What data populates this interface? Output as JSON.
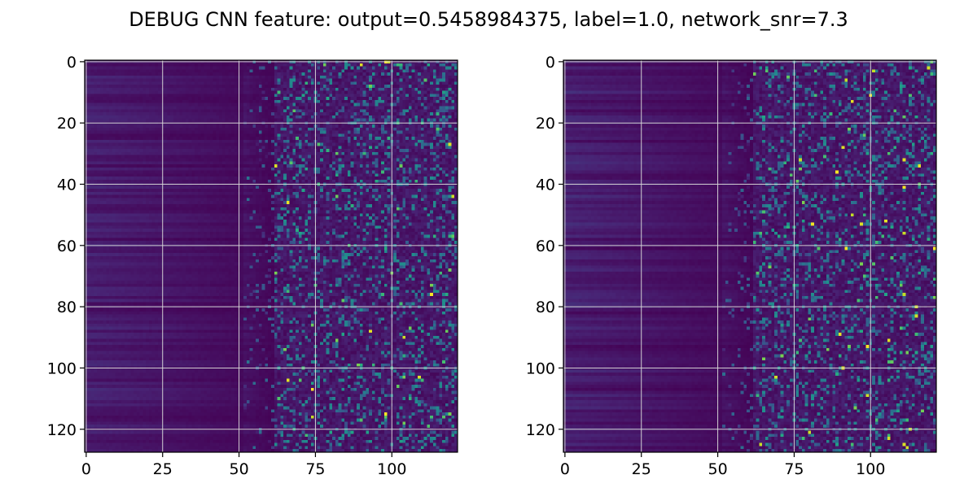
{
  "chart_data": {
    "title": "DEBUG CNN feature: output=0.5458984375, label=1.0, network_snr=7.3",
    "type": "heatmap",
    "colormap": "viridis",
    "grid": true,
    "panels": [
      {
        "name": "",
        "rows": 128,
        "cols": 122,
        "xlim": [
          -0.5,
          121.5
        ],
        "ylim": [
          127.5,
          -0.5
        ],
        "x_ticks": [
          0,
          25,
          50,
          75,
          100
        ],
        "y_ticks": [
          0,
          20,
          40,
          60,
          80,
          100,
          120
        ],
        "x_tick_labels": [
          "0",
          "25",
          "50",
          "75",
          "100"
        ],
        "y_tick_labels": [
          "0",
          "20",
          "40",
          "60",
          "80",
          "100",
          "120"
        ],
        "pattern": "smooth low values for columns 0-50 with faint horizontal banding; sparse high-value speckle for columns 60-121",
        "seed": 17
      },
      {
        "name": "",
        "rows": 128,
        "cols": 122,
        "xlim": [
          -0.5,
          121.5
        ],
        "ylim": [
          127.5,
          -0.5
        ],
        "x_ticks": [
          0,
          25,
          50,
          75,
          100
        ],
        "y_ticks": [
          0,
          20,
          40,
          60,
          80,
          100,
          120
        ],
        "x_tick_labels": [
          "0",
          "25",
          "50",
          "75",
          "100"
        ],
        "y_tick_labels": [
          "0",
          "20",
          "40",
          "60",
          "80",
          "100",
          "120"
        ],
        "pattern": "smooth low values for columns 0-50 with faint horizontal banding; sparse high-value speckle for columns 60-121",
        "seed": 91
      }
    ]
  }
}
